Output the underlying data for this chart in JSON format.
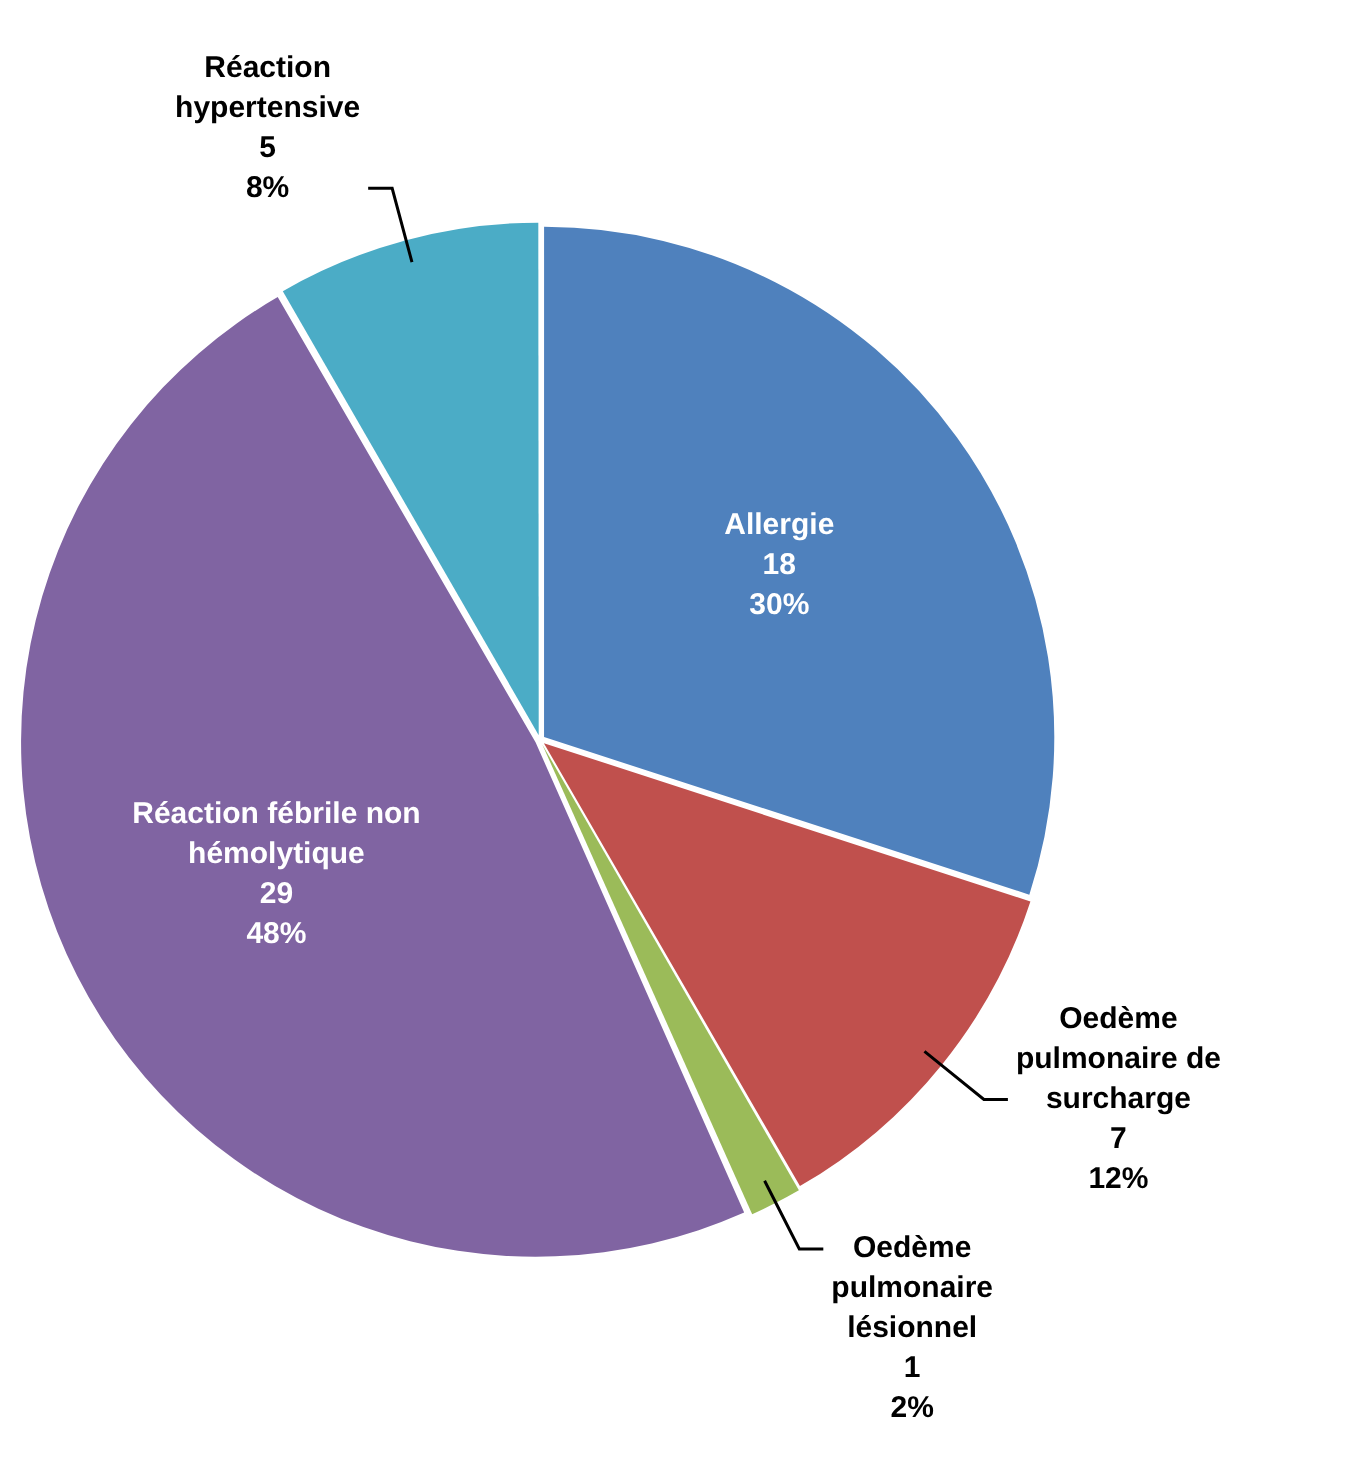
{
  "chart_data": {
    "type": "pie",
    "categories": [
      "Allergie",
      "Oedème pulmonaire de surcharge",
      "Oedème pulmonaire lésionnel",
      "Réaction fébrile non hémolytique",
      "Réaction hypertensive"
    ],
    "values": [
      18,
      7,
      1,
      29,
      5
    ],
    "colors": [
      "#4f81bd",
      "#c0504d",
      "#9bbb59",
      "#8064a2",
      "#4bacc6"
    ],
    "value_labels": [
      "18\n30%",
      "7\n12%",
      "1\n2%",
      "29\n48%",
      "5\n8%"
    ],
    "legend": false
  }
}
